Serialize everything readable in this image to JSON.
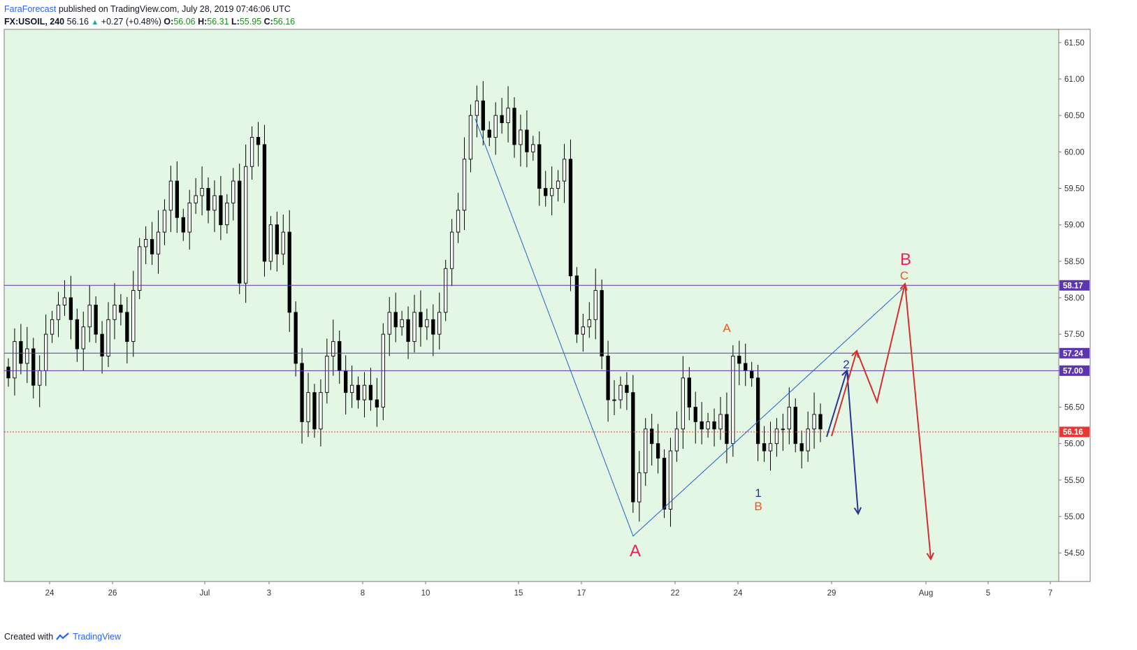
{
  "header": {
    "author": "FaraForecast",
    "published": "published on TradingView.com, July 28, 2019 07:46:06 UTC",
    "symbol": "FX:USOIL, 240",
    "last": "56.16",
    "change": "+0.27 (+0.48%)",
    "o_label": "O:",
    "o": "56.06",
    "h_label": "H:",
    "h": "56.31",
    "l_label": "L:",
    "l": "55.95",
    "c_label": "C:",
    "c": "56.16"
  },
  "footer": {
    "created": "Created with",
    "brand": "TradingView"
  },
  "colors": {
    "background": "#e4f6e4",
    "horizontal_line": "#5e35b1",
    "last_price_line": "#e53935",
    "trend_line": "#1e63c8",
    "wave_red": "#d32f2f",
    "wave_blue": "#283593",
    "label_crimson": "#e91e63",
    "label_orange": "#f4511e"
  },
  "chart_data": {
    "type": "candlestick",
    "interval": "240",
    "ylim": [
      54.1,
      61.7
    ],
    "y_ticks": [
      "61.50",
      "61.00",
      "60.50",
      "60.00",
      "59.50",
      "59.00",
      "58.50",
      "58.00",
      "57.50",
      "57.00",
      "56.50",
      "56.00",
      "55.50",
      "55.00",
      "54.50"
    ],
    "x_ticks": [
      "24",
      "26",
      "Jul",
      "3",
      "8",
      "10",
      "15",
      "17",
      "22",
      "24",
      "29",
      "Aug",
      "5",
      "7"
    ],
    "price_levels": [
      {
        "label": "58.17",
        "value": 58.17,
        "style": "solid"
      },
      {
        "label": "57.24",
        "value": 57.24,
        "style": "solid"
      },
      {
        "label": "57.00",
        "value": 57.0,
        "style": "solid"
      }
    ],
    "last_price": {
      "label": "56.16",
      "value": 56.16,
      "style": "dotted"
    },
    "candles_close": [
      56.9,
      57.4,
      57.1,
      57.3,
      56.8,
      57.0,
      57.5,
      57.7,
      57.9,
      58.0,
      57.7,
      57.3,
      57.6,
      57.9,
      57.5,
      57.2,
      57.7,
      57.9,
      57.8,
      57.4,
      58.1,
      58.7,
      58.8,
      58.6,
      58.9,
      59.2,
      59.6,
      59.1,
      58.9,
      59.3,
      59.4,
      59.5,
      59.2,
      59.4,
      59.0,
      59.3,
      59.6,
      58.2,
      59.8,
      60.2,
      60.1,
      58.5,
      59.0,
      58.6,
      58.9,
      57.8,
      57.1,
      56.3,
      56.7,
      56.2,
      56.7,
      57.2,
      57.4,
      57.0,
      56.7,
      56.8,
      56.6,
      56.8,
      56.6,
      56.5,
      57.5,
      57.8,
      57.6,
      57.7,
      57.4,
      57.8,
      57.6,
      57.7,
      57.5,
      57.8,
      58.4,
      58.9,
      59.2,
      59.9,
      60.5,
      60.7,
      60.3,
      60.2,
      60.5,
      60.4,
      60.6,
      60.1,
      60.3,
      60.0,
      60.1,
      59.5,
      59.4,
      59.5,
      59.6,
      59.9,
      58.3,
      57.5,
      57.6,
      57.7,
      58.1,
      57.2,
      56.6,
      56.6,
      56.8,
      56.7,
      55.2,
      55.6,
      56.2,
      56.0,
      55.8,
      55.1,
      55.9,
      56.2,
      56.9,
      56.5,
      56.3,
      56.2,
      56.3,
      56.2,
      56.4,
      56.0,
      57.2,
      57.1,
      57.0,
      56.9,
      56.0,
      55.9,
      56.0,
      56.2,
      56.2,
      56.5,
      56.0,
      55.9,
      56.2,
      56.4,
      56.2
    ],
    "annotations": [
      {
        "text": "A",
        "color": "crimson",
        "label": "wave A low"
      },
      {
        "text": "A",
        "color": "orange",
        "label": "sub-wave A"
      },
      {
        "text": "1",
        "color": "blue"
      },
      {
        "text": "B",
        "color": "orange"
      },
      {
        "text": "2",
        "color": "blue"
      },
      {
        "text": "B",
        "color": "crimson"
      },
      {
        "text": "C",
        "color": "orange"
      }
    ]
  }
}
